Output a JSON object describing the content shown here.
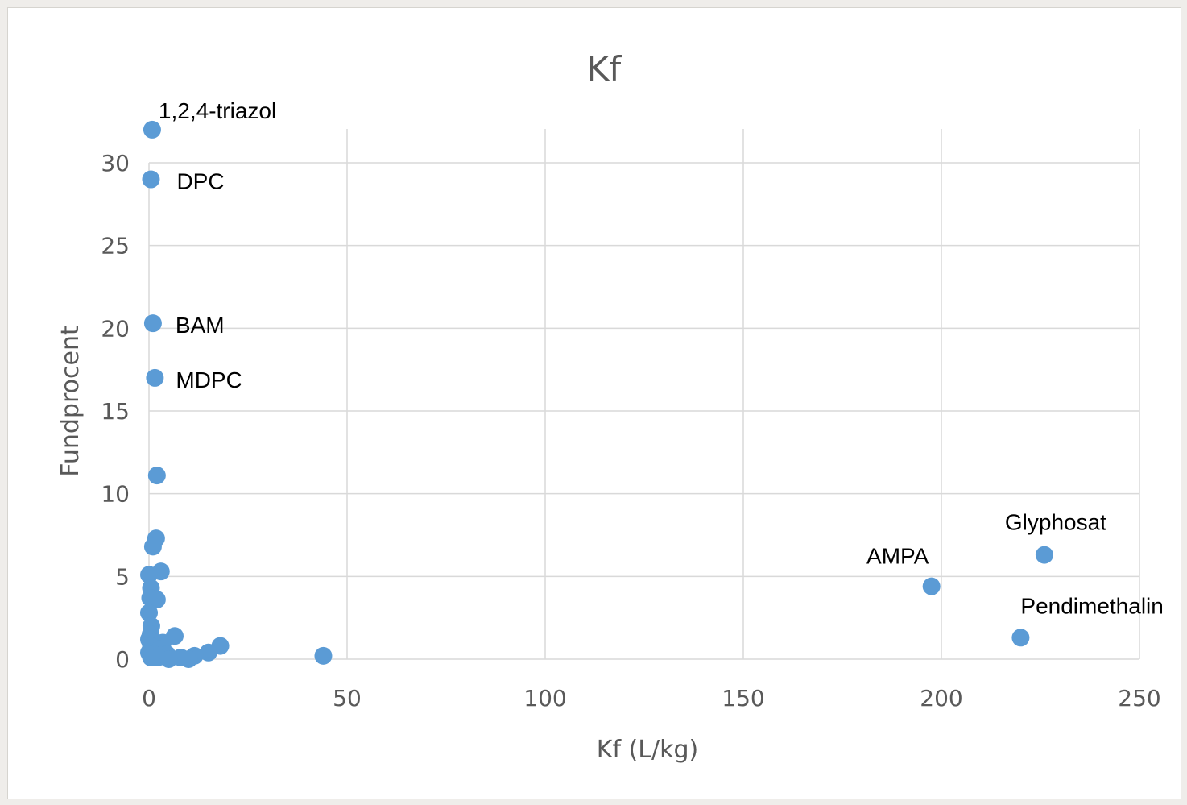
{
  "chart_data": {
    "type": "scatter",
    "title": "Kf",
    "xlabel": "Kf (L/kg)",
    "ylabel": "Fundprocent",
    "xlim": [
      0,
      250
    ],
    "ylim": [
      0,
      30
    ],
    "xticks": [
      0,
      50,
      100,
      150,
      200,
      250
    ],
    "yticks": [
      0,
      5,
      10,
      15,
      20,
      25,
      30
    ],
    "grid": true,
    "legend": "none",
    "marker_color": "#5b9bd5",
    "series": [
      {
        "points": [
          {
            "x": 0.8,
            "y": 32.0,
            "label": "1,2,4-triazol"
          },
          {
            "x": 0.5,
            "y": 29.0,
            "label": "DPC"
          },
          {
            "x": 1.0,
            "y": 20.3,
            "label": "BAM"
          },
          {
            "x": 1.5,
            "y": 17.0,
            "label": "MDPC"
          },
          {
            "x": 2.0,
            "y": 11.1
          },
          {
            "x": 1.8,
            "y": 7.3
          },
          {
            "x": 1.0,
            "y": 6.8
          },
          {
            "x": 3.0,
            "y": 5.3
          },
          {
            "x": 0.0,
            "y": 5.1
          },
          {
            "x": 0.5,
            "y": 4.3
          },
          {
            "x": 0.3,
            "y": 3.7
          },
          {
            "x": 2.0,
            "y": 3.6
          },
          {
            "x": 0.0,
            "y": 2.8
          },
          {
            "x": 0.6,
            "y": 2.0
          },
          {
            "x": 0.4,
            "y": 1.5
          },
          {
            "x": 6.5,
            "y": 1.4
          },
          {
            "x": 0.0,
            "y": 1.2
          },
          {
            "x": 1.5,
            "y": 1.0
          },
          {
            "x": 3.5,
            "y": 1.0
          },
          {
            "x": 0.5,
            "y": 0.8
          },
          {
            "x": 18.0,
            "y": 0.8
          },
          {
            "x": 2.5,
            "y": 0.6
          },
          {
            "x": 0.0,
            "y": 0.4
          },
          {
            "x": 15.0,
            "y": 0.4
          },
          {
            "x": 1.2,
            "y": 0.3
          },
          {
            "x": 4.5,
            "y": 0.3
          },
          {
            "x": 11.5,
            "y": 0.2
          },
          {
            "x": 44.0,
            "y": 0.2
          },
          {
            "x": 0.5,
            "y": 0.1
          },
          {
            "x": 2.2,
            "y": 0.1
          },
          {
            "x": 8.0,
            "y": 0.1
          },
          {
            "x": 5.0,
            "y": 0.0
          },
          {
            "x": 10.0,
            "y": 0.0
          },
          {
            "x": 226.0,
            "y": 6.3,
            "label": "Glyphosat"
          },
          {
            "x": 197.5,
            "y": 4.4,
            "label": "AMPA"
          },
          {
            "x": 220.0,
            "y": 1.3,
            "label": "Pendimethalin"
          }
        ]
      }
    ]
  }
}
